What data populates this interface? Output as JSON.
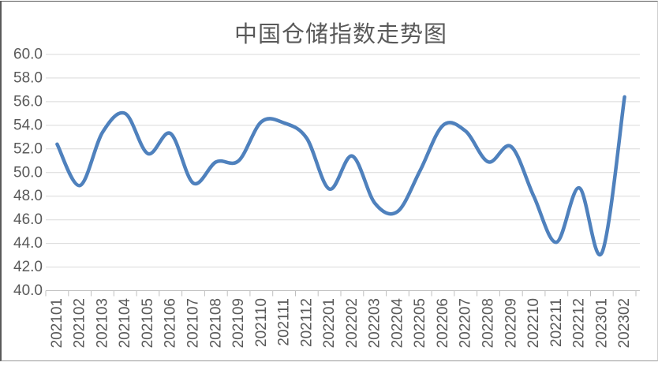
{
  "chart_data": {
    "type": "line",
    "title": "中国仓储指数走势图",
    "xlabel": "",
    "ylabel": "",
    "ylim": [
      40.0,
      60.0
    ],
    "ytick_step": 2.0,
    "ytick_labels": [
      "40.0",
      "42.0",
      "44.0",
      "46.0",
      "48.0",
      "50.0",
      "52.0",
      "54.0",
      "56.0",
      "58.0",
      "60.0"
    ],
    "grid": "horizontal",
    "legend_position": "none",
    "smooth_line": true,
    "categories": [
      "202101",
      "202102",
      "202103",
      "202104",
      "202105",
      "202106",
      "202107",
      "202108",
      "202109",
      "202110",
      "202111",
      "202112",
      "202201",
      "202202",
      "202203",
      "202204",
      "202205",
      "202206",
      "202207",
      "202208",
      "202209",
      "202210",
      "202211",
      "202212",
      "202301",
      "202302"
    ],
    "values": [
      52.4,
      48.9,
      53.4,
      55.0,
      51.6,
      53.3,
      49.1,
      50.9,
      51.0,
      54.3,
      54.2,
      52.9,
      48.6,
      51.4,
      47.4,
      46.7,
      50.2,
      54.0,
      53.5,
      50.9,
      52.2,
      48.0,
      44.1,
      48.7,
      43.2,
      56.4
    ],
    "colors": {
      "line": "#4f81bd",
      "gridline": "#d9d9d9",
      "axis_line": "#bfbfbf",
      "tick": "#bfbfbf",
      "axis_label": "#595959",
      "title": "#595959"
    }
  }
}
